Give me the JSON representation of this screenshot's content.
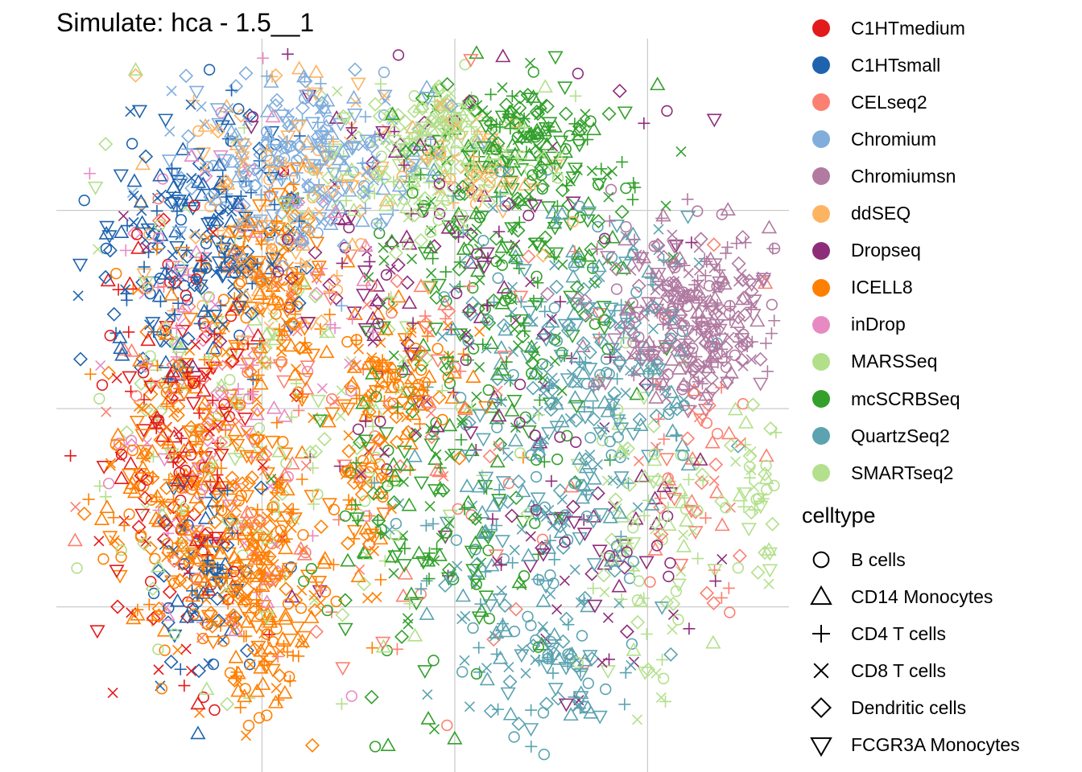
{
  "chart_data": {
    "type": "scatter",
    "title": "Simulate: hca - 1.5__1",
    "xlabel": "",
    "ylabel": "",
    "xlim": [
      -62,
      52
    ],
    "ylim": [
      -55,
      56
    ],
    "grid": true,
    "grid_x": [
      -30,
      0,
      30
    ],
    "grid_y": [
      -30,
      0,
      30
    ],
    "legend_position": "right",
    "color_legend": {
      "title": "",
      "entries": [
        {
          "name": "C1HTmedium",
          "color": "#E31A1C"
        },
        {
          "name": "C1HTsmall",
          "color": "#1F63AE"
        },
        {
          "name": "CELseq2",
          "color": "#FB8072"
        },
        {
          "name": "Chromium",
          "color": "#80ADDC"
        },
        {
          "name": "Chromiumsn",
          "color": "#B07AA1"
        },
        {
          "name": "ddSEQ",
          "color": "#FDB462"
        },
        {
          "name": "Dropseq",
          "color": "#8E2C7A"
        },
        {
          "name": "ICELL8",
          "color": "#FF7F00"
        },
        {
          "name": "inDrop",
          "color": "#E78AC3"
        },
        {
          "name": "MARSSeq",
          "color": "#B2DF8A"
        },
        {
          "name": "mcSCRBSeq",
          "color": "#33A02C"
        },
        {
          "name": "QuartzSeq2",
          "color": "#5BA3B0"
        },
        {
          "name": "SMARTseq2",
          "color": "#B3E08C"
        }
      ]
    },
    "shape_legend": {
      "title": "celltype",
      "entries": [
        {
          "name": "B cells",
          "shape": "circle"
        },
        {
          "name": "CD14 Monocytes",
          "shape": "triangle-up"
        },
        {
          "name": "CD4 T cells",
          "shape": "plus"
        },
        {
          "name": "CD8 T cells",
          "shape": "cross"
        },
        {
          "name": "Dendritic cells",
          "shape": "diamond"
        },
        {
          "name": "FCGR3A Monocytes",
          "shape": "triangle-down"
        }
      ]
    },
    "clusters": [
      {
        "series": "ICELL8",
        "center": [
          -40,
          -12
        ],
        "sd": [
          7,
          14
        ],
        "n": 320
      },
      {
        "series": "ICELL8",
        "center": [
          -29,
          -28
        ],
        "sd": [
          4,
          10
        ],
        "n": 170
      },
      {
        "series": "ICELL8",
        "center": [
          -28,
          20
        ],
        "sd": [
          4,
          8
        ],
        "n": 140
      },
      {
        "series": "ICELL8",
        "center": [
          -8,
          4
        ],
        "sd": [
          5,
          5
        ],
        "n": 90
      },
      {
        "series": "ICELL8",
        "center": [
          -14,
          -12
        ],
        "sd": [
          3,
          9
        ],
        "n": 70
      },
      {
        "series": "C1HTsmall",
        "center": [
          -40,
          25
        ],
        "sd": [
          8,
          9
        ],
        "n": 220
      },
      {
        "series": "C1HTsmall",
        "center": [
          -38,
          -25
        ],
        "sd": [
          4,
          8
        ],
        "n": 70
      },
      {
        "series": "C1HTmedium",
        "center": [
          -43,
          -5
        ],
        "sd": [
          6,
          18
        ],
        "n": 150
      },
      {
        "series": "Chromium",
        "center": [
          -23,
          38
        ],
        "sd": [
          10,
          7
        ],
        "n": 240
      },
      {
        "series": "ddSEQ",
        "center": [
          -28,
          30
        ],
        "sd": [
          9,
          10
        ],
        "n": 120
      },
      {
        "series": "ddSEQ",
        "center": [
          2,
          38
        ],
        "sd": [
          6,
          5
        ],
        "n": 60
      },
      {
        "series": "inDrop",
        "center": [
          -35,
          2
        ],
        "sd": [
          10,
          18
        ],
        "n": 120
      },
      {
        "series": "MARSSeq",
        "center": [
          -30,
          0
        ],
        "sd": [
          15,
          20
        ],
        "n": 160
      },
      {
        "series": "MARSSeq",
        "center": [
          -1,
          43
        ],
        "sd": [
          3,
          3
        ],
        "n": 50
      },
      {
        "series": "SMARTseq2",
        "center": [
          -5,
          38
        ],
        "sd": [
          10,
          6
        ],
        "n": 140
      },
      {
        "series": "SMARTseq2",
        "center": [
          47,
          -12
        ],
        "sd": [
          3,
          7
        ],
        "n": 50
      },
      {
        "series": "SMARTseq2",
        "center": [
          30,
          -20
        ],
        "sd": [
          5,
          13
        ],
        "n": 90
      },
      {
        "series": "mcSCRBSeq",
        "center": [
          10,
          25
        ],
        "sd": [
          10,
          14
        ],
        "n": 260
      },
      {
        "series": "mcSCRBSeq",
        "center": [
          -3,
          -12
        ],
        "sd": [
          9,
          14
        ],
        "n": 160
      },
      {
        "series": "mcSCRBSeq",
        "center": [
          12,
          42
        ],
        "sd": [
          6,
          3
        ],
        "n": 80
      },
      {
        "series": "QuartzSeq2",
        "center": [
          12,
          -10
        ],
        "sd": [
          9,
          18
        ],
        "n": 260
      },
      {
        "series": "QuartzSeq2",
        "center": [
          26,
          10
        ],
        "sd": [
          7,
          11
        ],
        "n": 130
      },
      {
        "series": "QuartzSeq2",
        "center": [
          15,
          -40
        ],
        "sd": [
          6,
          6
        ],
        "n": 70
      },
      {
        "series": "Chromiumsn",
        "center": [
          37,
          14
        ],
        "sd": [
          7,
          7
        ],
        "n": 320
      },
      {
        "series": "Dropseq",
        "center": [
          -5,
          20
        ],
        "sd": [
          18,
          18
        ],
        "n": 150
      },
      {
        "series": "Dropseq",
        "center": [
          22,
          -22
        ],
        "sd": [
          8,
          9
        ],
        "n": 60
      },
      {
        "series": "CELseq2",
        "center": [
          -15,
          0
        ],
        "sd": [
          22,
          20
        ],
        "n": 130
      },
      {
        "series": "CELseq2",
        "center": [
          38,
          -10
        ],
        "sd": [
          6,
          8
        ],
        "n": 50
      }
    ]
  }
}
